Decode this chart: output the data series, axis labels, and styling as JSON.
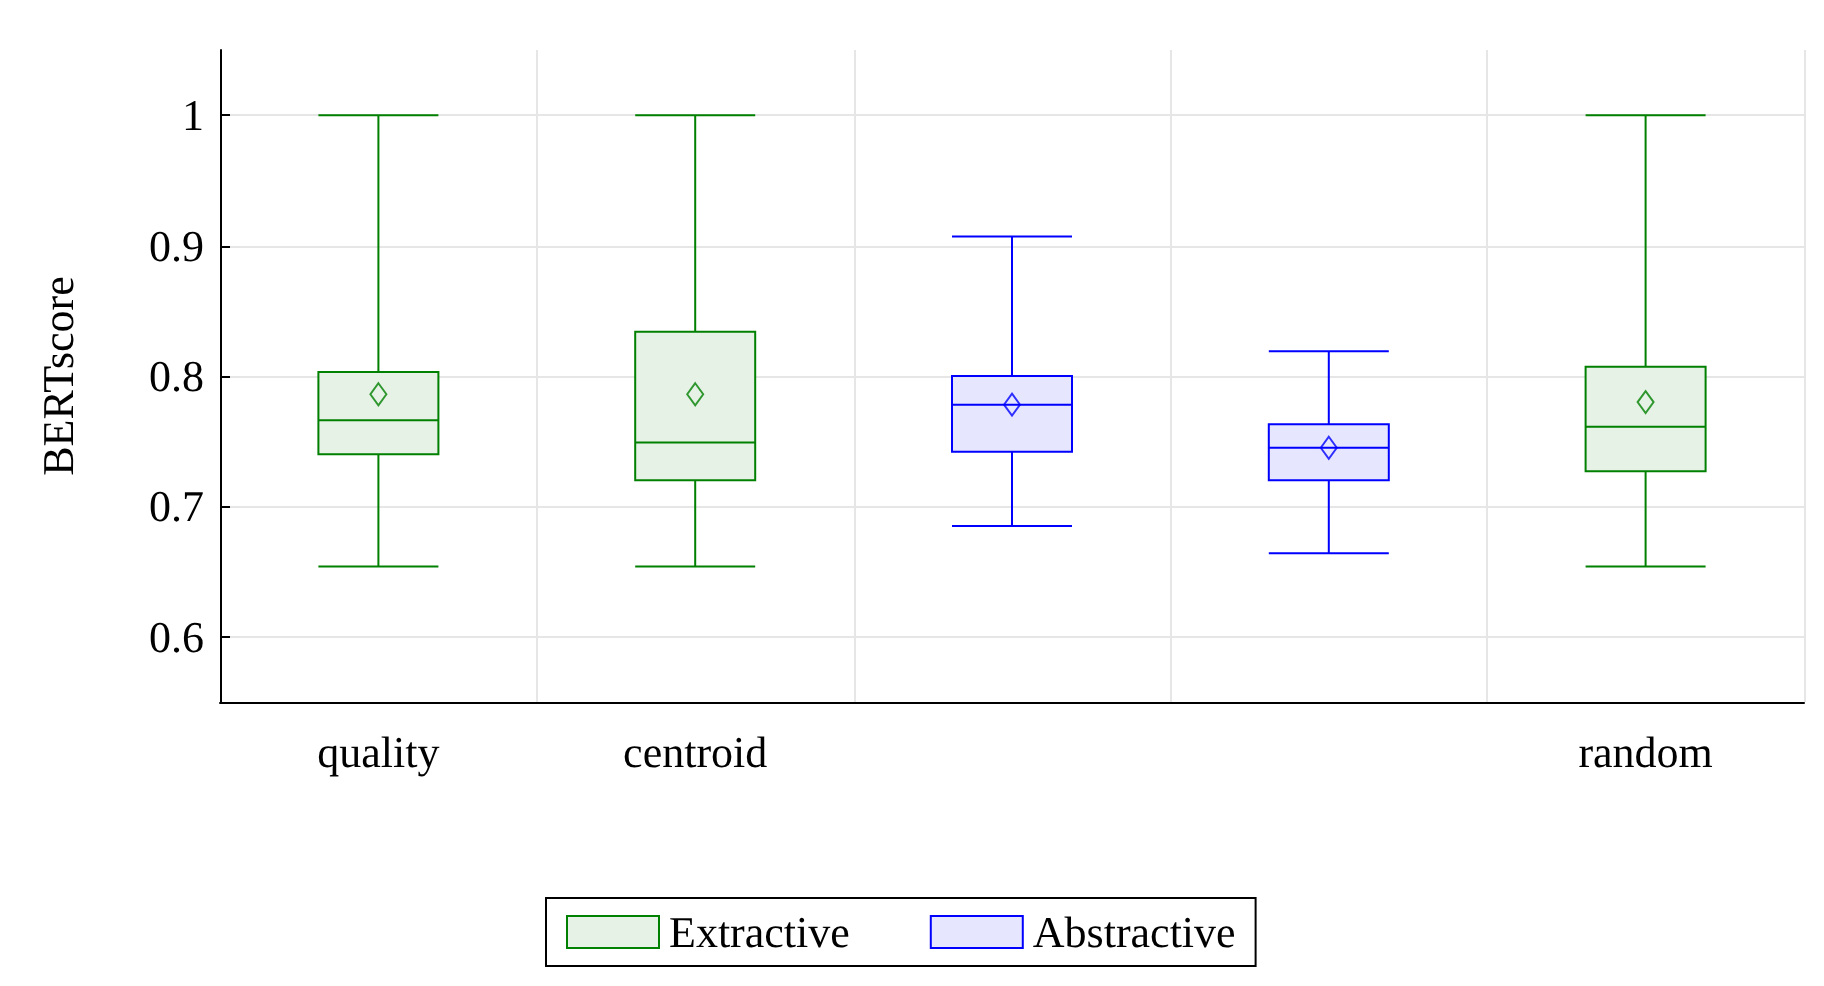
{
  "chart_data": {
    "type": "box",
    "ylabel": "BERTscore",
    "categories": [
      "quality",
      "centroid",
      null,
      null,
      "random"
    ],
    "ylim": [
      0.55,
      1.05
    ],
    "yticks": [
      0.6,
      0.7,
      0.8,
      0.9,
      1
    ],
    "grid": true,
    "legend": "bottom",
    "marker": "diamond",
    "series": [
      {
        "name": "Extractive",
        "color": "#008000",
        "boxes": [
          {
            "low": 0.654,
            "q1": 0.74,
            "median": 0.766,
            "q3": 0.803,
            "high": 1,
            "mean": 0.786
          },
          {
            "low": 0.654,
            "q1": 0.72,
            "median": 0.749,
            "q3": 0.834,
            "high": 1,
            "mean": 0.786
          },
          null,
          null,
          {
            "low": 0.654,
            "q1": 0.727,
            "median": 0.761,
            "q3": 0.807,
            "high": 1,
            "mean": 0.78
          }
        ]
      },
      {
        "name": "Abstractive",
        "color": "#0000ff",
        "boxes": [
          null,
          null,
          {
            "low": 0.685,
            "q1": 0.742,
            "median": 0.778,
            "q3": 0.8,
            "high": 0.907,
            "mean": 0.778
          },
          {
            "low": 0.664,
            "q1": 0.72,
            "median": 0.745,
            "q3": 0.763,
            "high": 0.819,
            "mean": 0.745
          },
          null
        ]
      }
    ]
  }
}
